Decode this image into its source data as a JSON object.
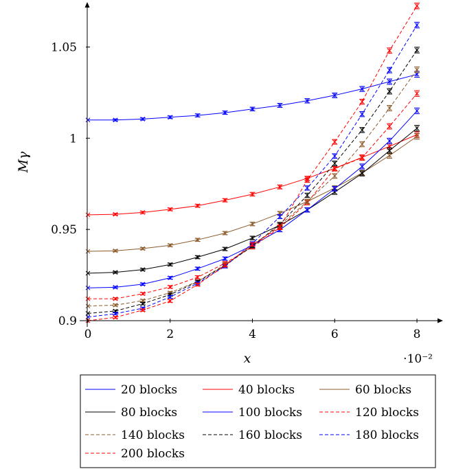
{
  "chart_data": {
    "type": "line",
    "title": "",
    "xlabel": "x",
    "ylabel": "Mγ",
    "x_scale_label": "·10⁻²",
    "xlim": [
      -0.2,
      8.55
    ],
    "ylim": [
      0.9,
      1.075
    ],
    "x_ticks": [
      0,
      2,
      4,
      6,
      8
    ],
    "x_tick_labels": [
      "0",
      "2",
      "4",
      "6",
      "8"
    ],
    "y_ticks": [
      0.9,
      0.95,
      1.0,
      1.05
    ],
    "y_tick_labels": [
      "0.9",
      "0.95",
      "1",
      "1.05"
    ],
    "grid": false,
    "legend_position": "bottom",
    "x": [
      0,
      0.667,
      1.333,
      2,
      2.667,
      3.333,
      4,
      4.667,
      5.333,
      6,
      6.667,
      7.333,
      8
    ],
    "series": [
      {
        "name": "20 blocks",
        "color": "#0000ff",
        "dash": "solid",
        "values": [
          1.01,
          1.01,
          1.0105,
          1.0115,
          1.0125,
          1.014,
          1.016,
          1.018,
          1.0205,
          1.0235,
          1.027,
          1.031,
          1.035
        ]
      },
      {
        "name": "40 blocks",
        "color": "#ff0000",
        "dash": "solid",
        "values": [
          0.958,
          0.9583,
          0.9593,
          0.961,
          0.963,
          0.966,
          0.9693,
          0.9733,
          0.978,
          0.9835,
          0.9895,
          0.9955,
          1.002
        ]
      },
      {
        "name": "60 blocks",
        "color": "#8b5a2b",
        "dash": "solid",
        "values": [
          0.938,
          0.9383,
          0.9395,
          0.9413,
          0.9443,
          0.948,
          0.953,
          0.9588,
          0.9653,
          0.9727,
          0.981,
          0.9905,
          1.001
        ]
      },
      {
        "name": "80 blocks",
        "color": "#000000",
        "dash": "solid",
        "values": [
          0.926,
          0.9265,
          0.928,
          0.9308,
          0.9348,
          0.9393,
          0.9453,
          0.9523,
          0.9607,
          0.9705,
          0.9807,
          0.9932,
          1.0055
        ]
      },
      {
        "name": "100 blocks",
        "color": "#0000ff",
        "dash": "solid",
        "values": [
          0.918,
          0.9183,
          0.92,
          0.9235,
          0.9285,
          0.934,
          0.9413,
          0.9498,
          0.9607,
          0.9723,
          0.9845,
          0.9985,
          1.015
        ]
      },
      {
        "name": "120 blocks",
        "color": "#ff0000",
        "dash": "dashed",
        "values": [
          0.912,
          0.912,
          0.9148,
          0.9185,
          0.9238,
          0.9315,
          0.9403,
          0.951,
          0.9647,
          0.9833,
          0.9893,
          1.0065,
          1.0245
        ]
      },
      {
        "name": "140 blocks",
        "color": "#8b5a2b",
        "dash": "dashed",
        "values": [
          0.908,
          0.9085,
          0.911,
          0.9153,
          0.9215,
          0.9308,
          0.9408,
          0.9523,
          0.9653,
          0.9793,
          0.9967,
          1.0165,
          1.0375
        ]
      },
      {
        "name": "160 blocks",
        "color": "#000000",
        "dash": "dashed",
        "values": [
          0.904,
          0.9053,
          0.9093,
          0.9143,
          0.9213,
          0.9303,
          0.941,
          0.9528,
          0.9687,
          0.9862,
          1.0045,
          1.0257,
          1.0483
        ]
      },
      {
        "name": "180 blocks",
        "color": "#0000ff",
        "dash": "dashed",
        "values": [
          0.902,
          0.9038,
          0.9068,
          0.913,
          0.9205,
          0.9298,
          0.9423,
          0.957,
          0.9727,
          0.9902,
          1.0132,
          1.0373,
          1.062
        ]
      },
      {
        "name": "200 blocks",
        "color": "#ff0000",
        "dash": "dashed",
        "values": [
          0.9,
          0.9018,
          0.9058,
          0.9108,
          0.9198,
          0.9303,
          0.9418,
          0.9513,
          0.977,
          0.998,
          1.02,
          1.048,
          1.0725
        ]
      }
    ]
  }
}
